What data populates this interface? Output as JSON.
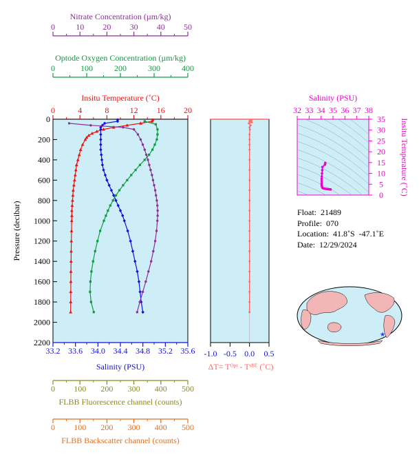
{
  "colors": {
    "nitrate": "#8b2f97",
    "oxygen": "#119944",
    "temperature": "#ee1111",
    "salinity": "#1010dd",
    "deltaT": "#ff6666",
    "fluorescence": "#8a8a22",
    "backscatter": "#e07020",
    "ts_accent": "#ee00cc",
    "panel_bg": "#cdeef6"
  },
  "axes": {
    "nitrate": {
      "label": "Nitrate Concentration (µm/kg)",
      "ticks": [
        "0",
        "10",
        "20",
        "30",
        "40",
        "50"
      ]
    },
    "oxygen": {
      "label": "Optode Oxygen Concentration (µm/kg)",
      "ticks": [
        "0",
        "100",
        "200",
        "300",
        "400"
      ]
    },
    "temperature": {
      "label": "Insitu Temperature (˚C)",
      "ticks": [
        "0",
        "4",
        "8",
        "12",
        "16",
        "20"
      ]
    },
    "pressure": {
      "label": "Pressure (decibar)",
      "ticks": [
        "0",
        "200",
        "400",
        "600",
        "800",
        "1000",
        "1200",
        "1400",
        "1600",
        "1800",
        "2000",
        "2200"
      ]
    },
    "salinity": {
      "label": "Salinity (PSU)",
      "ticks": [
        "33.2",
        "33.6",
        "34.0",
        "34.4",
        "34.8",
        "35.2",
        "35.6"
      ]
    },
    "deltaT": {
      "label": "ΔT= Tᴼᵖᵗ - Tˢᴮᴱ (˚C)",
      "ticks": [
        "-1.0",
        "-0.5",
        "0.0",
        "0.5"
      ]
    },
    "fluorescence": {
      "label": "FLBB Fluorescence channel (counts)",
      "ticks": [
        "0",
        "100",
        "200",
        "300",
        "400",
        "500"
      ]
    },
    "backscatter": {
      "label": "FLBB Backscatter channel (counts)",
      "ticks": [
        "0",
        "100",
        "200",
        "300",
        "400",
        "500"
      ]
    },
    "ts_salinity": {
      "label": "Salinity (PSU)",
      "ticks": [
        "32",
        "33",
        "34",
        "35",
        "36",
        "37",
        "38"
      ]
    },
    "ts_temperature": {
      "label": "Insitu Temperature (˚C)",
      "ticks": [
        "0",
        "5",
        "10",
        "15",
        "20",
        "25",
        "30",
        "35"
      ]
    }
  },
  "info": {
    "float": "Float:  21489",
    "profile": "Profile:  070",
    "location": "Location:  41.8˚S  -47.1˚E",
    "date": "Date:  12/29/2024"
  },
  "chart_data": [
    {
      "type": "line",
      "name": "vertical profiles",
      "xlabel": "Salinity (PSU)",
      "ylabel": "Pressure (decibar)",
      "ylim": [
        2200,
        0
      ],
      "series": [
        {
          "name": "Temperature",
          "units": "˚C",
          "xlim": [
            0,
            20
          ],
          "y": [
            5,
            20,
            40,
            60,
            80,
            100,
            120,
            140,
            160,
            180,
            200,
            250,
            300,
            350,
            400,
            450,
            500,
            550,
            600,
            650,
            700,
            750,
            800,
            850,
            900,
            950,
            1000,
            1100,
            1200,
            1300,
            1400,
            1500,
            1600,
            1700,
            1800,
            1900
          ],
          "x": [
            14.8,
            14.7,
            13.0,
            11.0,
            9.0,
            7.5,
            6.5,
            5.8,
            5.3,
            5.0,
            4.8,
            4.4,
            4.1,
            3.9,
            3.7,
            3.5,
            3.4,
            3.3,
            3.2,
            3.1,
            3.0,
            2.95,
            2.9,
            2.85,
            2.8,
            2.8,
            2.78,
            2.75,
            2.72,
            2.7,
            2.68,
            2.66,
            2.65,
            2.64,
            2.63,
            2.62
          ]
        },
        {
          "name": "Salinity",
          "units": "PSU",
          "xlim": [
            33.2,
            35.6
          ],
          "y": [
            5,
            20,
            40,
            60,
            80,
            100,
            150,
            200,
            250,
            300,
            350,
            400,
            450,
            500,
            550,
            600,
            650,
            700,
            750,
            800,
            850,
            900,
            950,
            1000,
            1100,
            1200,
            1300,
            1400,
            1500,
            1600,
            1700,
            1800,
            1900
          ],
          "x": [
            34.35,
            34.35,
            34.12,
            34.08,
            34.05,
            34.05,
            34.05,
            34.05,
            34.05,
            34.05,
            34.06,
            34.07,
            34.08,
            34.1,
            34.13,
            34.16,
            34.2,
            34.24,
            34.28,
            34.32,
            34.36,
            34.4,
            34.44,
            34.47,
            34.53,
            34.58,
            34.62,
            34.66,
            34.7,
            34.73,
            34.75,
            34.77,
            34.8
          ]
        },
        {
          "name": "Oxygen",
          "units": "µm/kg",
          "xlim": [
            0,
            400
          ],
          "y": [
            20,
            50,
            100,
            150,
            200,
            250,
            300,
            350,
            400,
            450,
            500,
            550,
            600,
            650,
            700,
            750,
            800,
            850,
            900,
            950,
            1000,
            1100,
            1200,
            1300,
            1400,
            1500,
            1600,
            1700,
            1800,
            1900
          ],
          "x": [
            272,
            305,
            310,
            310,
            308,
            302,
            295,
            285,
            272,
            258,
            245,
            232,
            220,
            208,
            197,
            187,
            178,
            170,
            163,
            157,
            151,
            140,
            132,
            125,
            119,
            114,
            111,
            110,
            113,
            121
          ]
        },
        {
          "name": "Nitrate",
          "units": "µm/kg",
          "xlim": [
            0,
            50
          ],
          "y": [
            40,
            60,
            80,
            100,
            150,
            200,
            250,
            300,
            350,
            400,
            450,
            500,
            550,
            600,
            650,
            700,
            750,
            800,
            850,
            900,
            950,
            1000,
            1100,
            1200,
            1300,
            1400,
            1500,
            1600,
            1700,
            1800,
            1900
          ],
          "x": [
            6.0,
            14.0,
            26.0,
            30.0,
            31.5,
            32.5,
            33.3,
            34.0,
            34.6,
            35.2,
            35.7,
            36.2,
            36.7,
            37.1,
            37.5,
            37.9,
            38.2,
            38.5,
            38.7,
            38.8,
            38.8,
            38.7,
            38.4,
            37.9,
            37.2,
            36.4,
            35.4,
            34.4,
            33.3,
            32.2,
            31.2
          ]
        },
        {
          "name": "Delta T",
          "units": "˚C",
          "xlim": [
            -1.0,
            0.5
          ],
          "y": [
            5,
            10,
            20,
            30,
            40,
            60,
            80,
            100,
            150,
            200,
            250,
            300,
            400,
            500,
            600,
            700,
            800,
            900,
            1000,
            1100,
            1200,
            1300,
            1400,
            1500,
            1600,
            1700,
            1800,
            1900
          ],
          "x": [
            0.02,
            0.05,
            0.0,
            0.06,
            -0.02,
            0.03,
            0.0,
            0.01,
            0.0,
            0.0,
            0.0,
            0.0,
            0.0,
            0.0,
            0.0,
            0.0,
            0.0,
            0.0,
            0.0,
            0.0,
            0.0,
            0.0,
            0.0,
            0.0,
            0.0,
            0.0,
            0.0,
            0.0
          ]
        }
      ]
    },
    {
      "type": "scatter",
      "name": "T-S diagram",
      "xlabel": "Salinity (PSU)",
      "ylabel": "Insitu Temperature (˚C)",
      "xlim": [
        32,
        38
      ],
      "ylim": [
        0,
        35
      ],
      "series": [
        {
          "name": "T-S",
          "x": [
            34.35,
            34.35,
            34.32,
            34.12,
            34.1,
            34.08,
            34.06,
            34.05,
            34.05,
            34.05,
            34.05,
            34.06,
            34.08,
            34.1,
            34.14,
            34.2,
            34.28,
            34.36,
            34.45,
            34.55,
            34.65,
            34.72,
            34.8
          ],
          "y": [
            14.8,
            14.6,
            14.0,
            13.0,
            11.5,
            10.0,
            8.5,
            7.5,
            6.5,
            5.5,
            4.8,
            4.2,
            3.8,
            3.5,
            3.3,
            3.1,
            3.0,
            2.9,
            2.8,
            2.75,
            2.7,
            2.66,
            2.62
          ]
        }
      ]
    }
  ]
}
